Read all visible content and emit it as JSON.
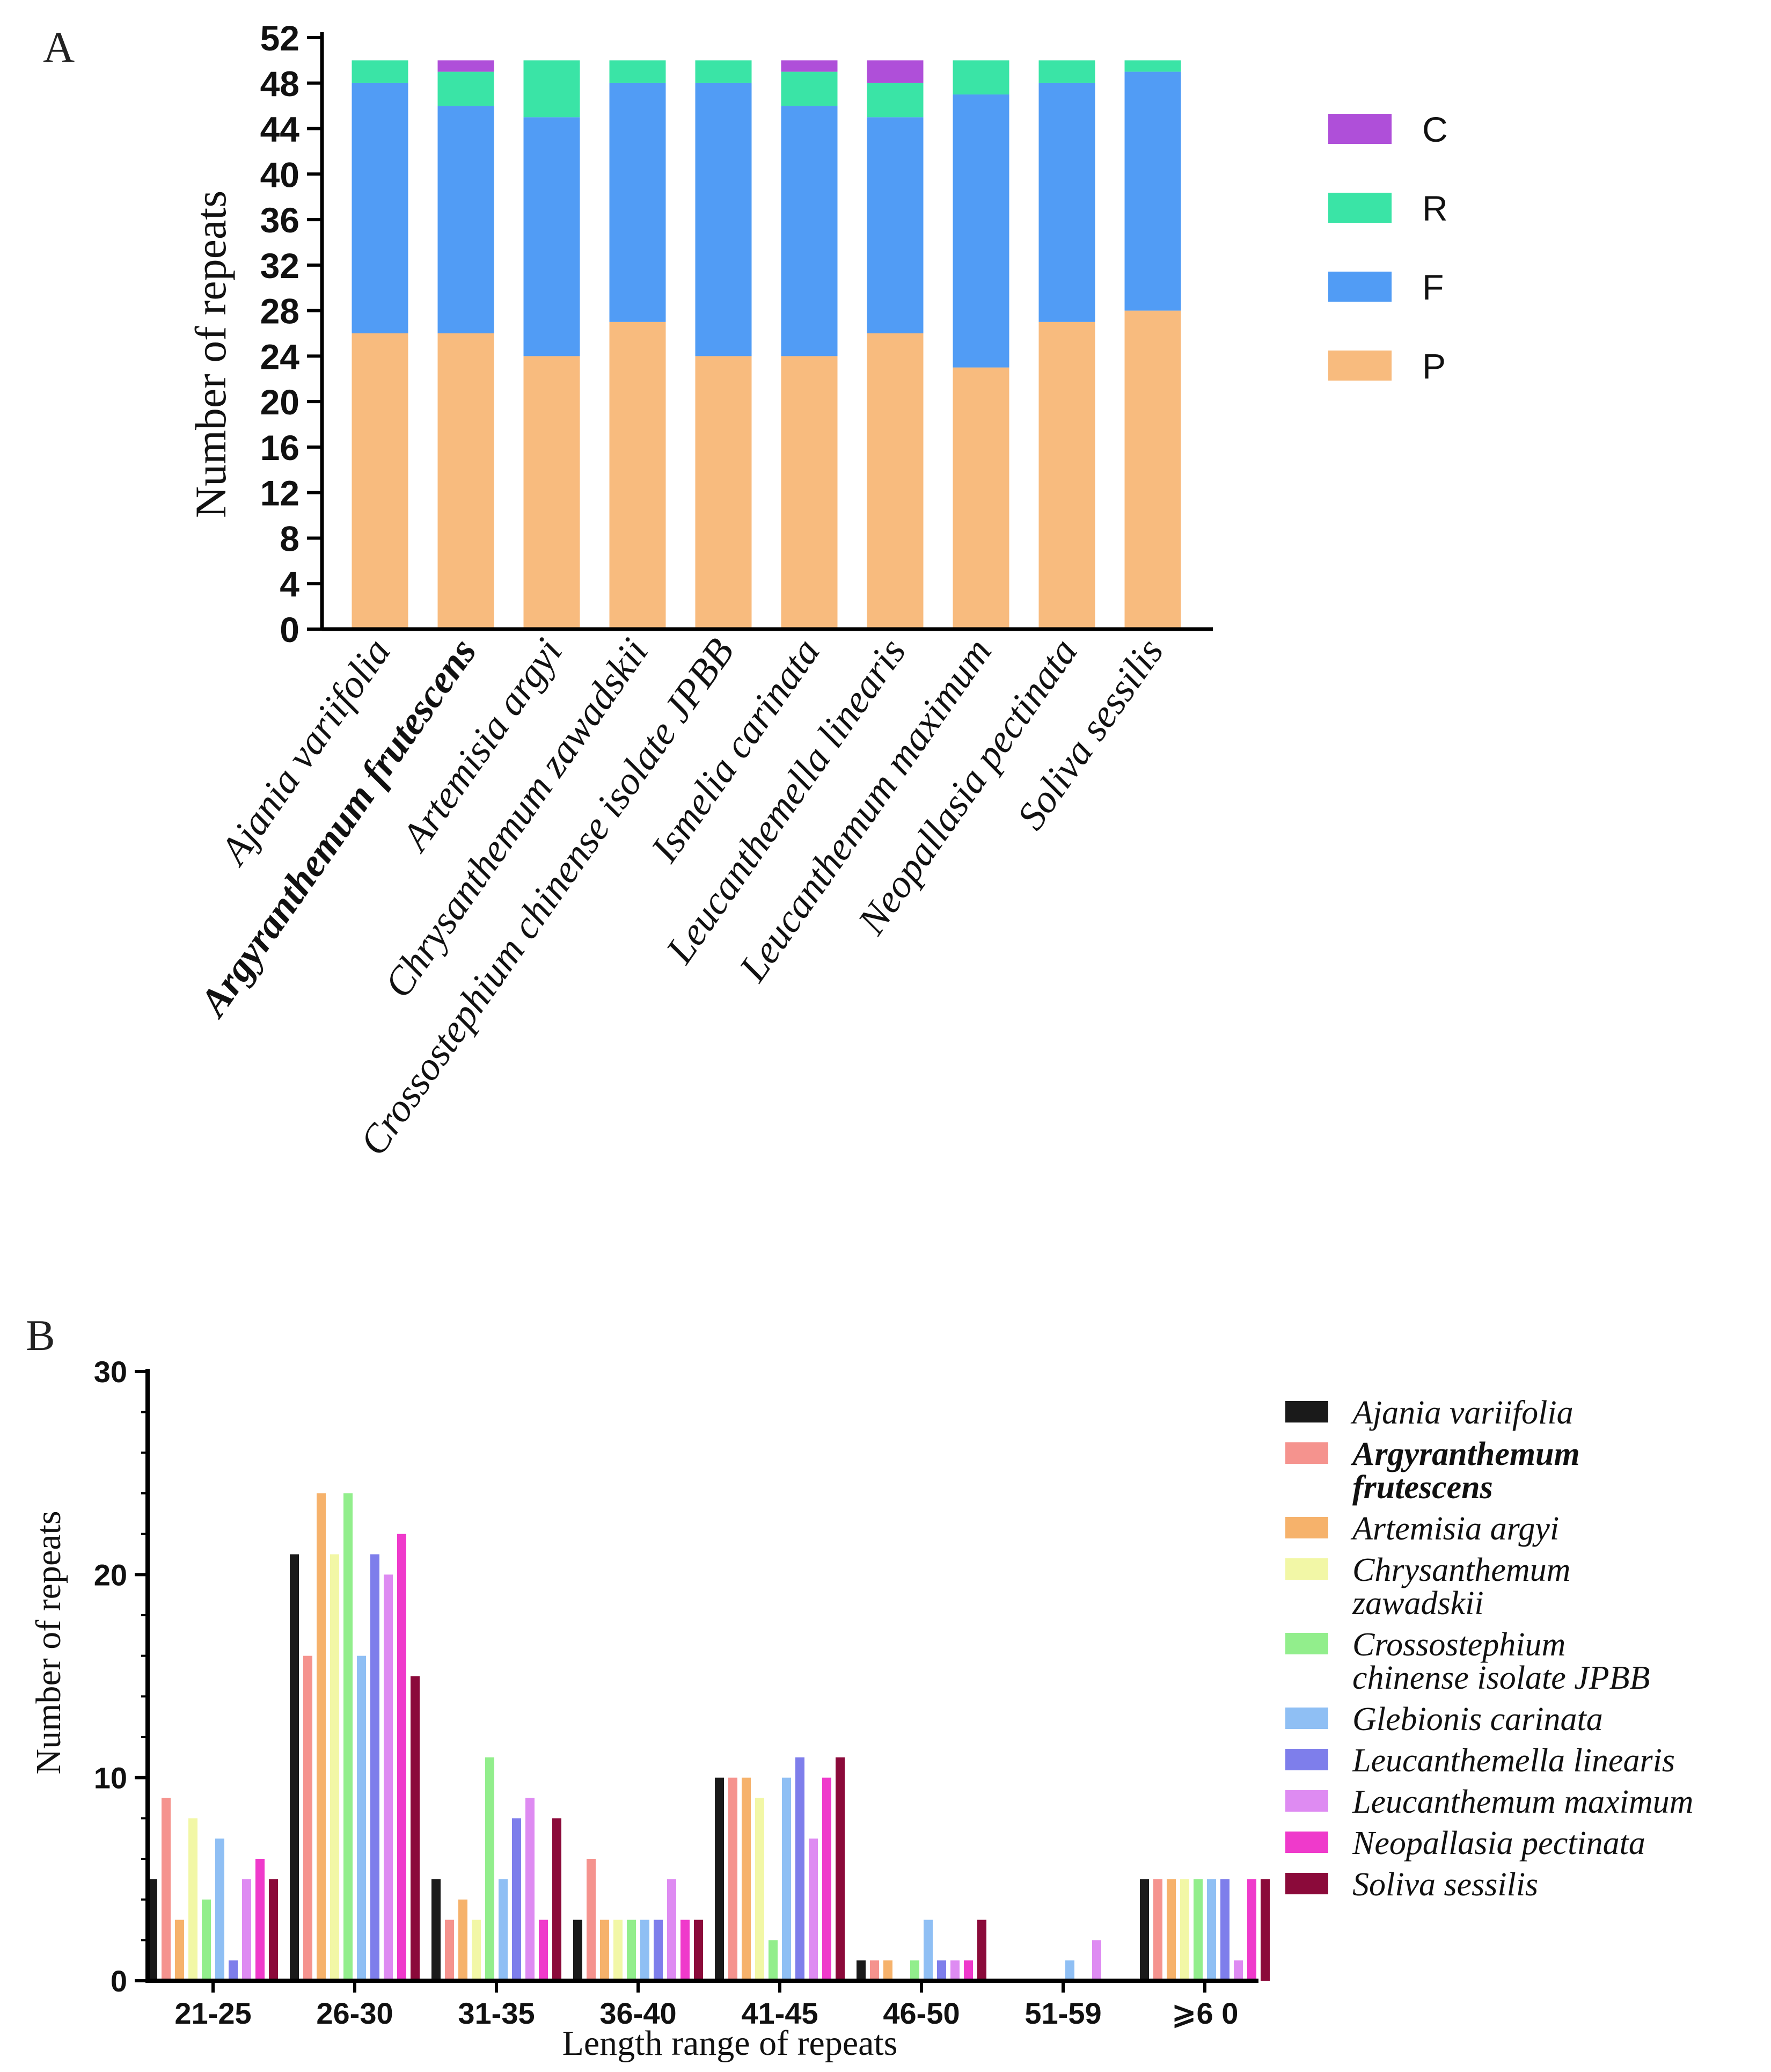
{
  "chart_data": [
    {
      "type": "bar",
      "stacked": true,
      "panel_label": "A",
      "title": "",
      "xlabel": "",
      "ylabel": "Number of repeats",
      "ylim": [
        0,
        52
      ],
      "yticks": [
        0,
        4,
        8,
        12,
        16,
        20,
        24,
        28,
        32,
        36,
        40,
        44,
        48,
        52
      ],
      "grid": false,
      "legend_position": "right",
      "categories": [
        "Ajania variifolia",
        "Argyranthemum frutescens",
        "Artemisia argyi",
        "Chrysanthemum zawadskii",
        "Crossostephium chinense isolate JPBB",
        "Ismelia carinata",
        "Leucanthemella linearis",
        "Leucanthemum maximum",
        "Neopallasia pectinata",
        "Soliva sessilis"
      ],
      "bold_category": "Argyranthemum frutescens",
      "series": [
        {
          "name": "P",
          "color": "#F8BB7E",
          "values": [
            26,
            26,
            24,
            27,
            24,
            24,
            26,
            23,
            27,
            28
          ]
        },
        {
          "name": "F",
          "color": "#519CF5",
          "values": [
            22,
            20,
            21,
            21,
            24,
            22,
            19,
            24,
            21,
            21
          ]
        },
        {
          "name": "R",
          "color": "#3AE4A6",
          "values": [
            2,
            3,
            5,
            2,
            2,
            3,
            3,
            3,
            2,
            1
          ]
        },
        {
          "name": "C",
          "color": "#AF4FD9",
          "values": [
            0,
            1,
            0,
            0,
            0,
            1,
            2,
            0,
            0,
            0
          ]
        }
      ],
      "legend_order": [
        "C",
        "R",
        "F",
        "P"
      ]
    },
    {
      "type": "bar",
      "stacked": false,
      "panel_label": "B",
      "title": "",
      "xlabel": "Length range of repeats",
      "ylabel": "Number of repeats",
      "ylim": [
        0,
        30
      ],
      "yticks": [
        0,
        10,
        20,
        30
      ],
      "grid": false,
      "legend_position": "right",
      "categories": [
        "21-25",
        "26-30",
        "31-35",
        "36-40",
        "41-45",
        "46-50",
        "51-59",
        "⩾6 0"
      ],
      "series": [
        {
          "name": "Ajania variifolia",
          "bold": false,
          "color": "#1A1A1A",
          "values": [
            5,
            21,
            5,
            3,
            10,
            1,
            0,
            5
          ]
        },
        {
          "name": "Argyranthemum frutescens",
          "bold": true,
          "color": "#F5938E",
          "values": [
            9,
            16,
            3,
            6,
            10,
            1,
            0,
            5
          ]
        },
        {
          "name": "Artemisia argyi",
          "bold": false,
          "color": "#F6B26B",
          "values": [
            3,
            24,
            4,
            3,
            10,
            1,
            0,
            5
          ]
        },
        {
          "name": "Chrysanthemum zawadskii",
          "bold": false,
          "color": "#F2F7A6",
          "values": [
            8,
            21,
            3,
            3,
            9,
            0,
            0,
            5
          ]
        },
        {
          "name": "Crossostephium chinense isolate JPBB",
          "bold": false,
          "color": "#92EE8C",
          "values": [
            4,
            24,
            11,
            3,
            2,
            1,
            0,
            5
          ]
        },
        {
          "name": "Glebionis carinata",
          "bold": false,
          "color": "#8FBFF4",
          "values": [
            7,
            16,
            5,
            3,
            10,
            3,
            1,
            5
          ]
        },
        {
          "name": "Leucanthemella linearis",
          "bold": false,
          "color": "#7E7EEB",
          "values": [
            1,
            21,
            8,
            3,
            11,
            1,
            0,
            5
          ]
        },
        {
          "name": "Leucanthemum maximum",
          "bold": false,
          "color": "#DE8BF2",
          "values": [
            5,
            20,
            9,
            5,
            7,
            1,
            2,
            1
          ]
        },
        {
          "name": "Neopallasia pectinata",
          "bold": false,
          "color": "#EF3ACB",
          "values": [
            6,
            22,
            3,
            3,
            10,
            1,
            0,
            5
          ]
        },
        {
          "name": "Soliva sessilis",
          "bold": false,
          "color": "#8B0A3A",
          "values": [
            5,
            15,
            8,
            3,
            11,
            3,
            0,
            5
          ]
        }
      ],
      "legend_lines": [
        [
          "Ajania variifolia"
        ],
        [
          "Argyranthemum",
          "frutescens"
        ],
        [
          "Artemisia argyi"
        ],
        [
          "Chrysanthemum",
          "zawadskii"
        ],
        [
          "Crossostephium",
          "chinense isolate JPBB"
        ],
        [
          "Glebionis carinata"
        ],
        [
          "Leucanthemella linearis"
        ],
        [
          "Leucanthemum maximum"
        ],
        [
          "Neopallasia pectinata"
        ],
        [
          "Soliva sessilis"
        ]
      ]
    }
  ]
}
